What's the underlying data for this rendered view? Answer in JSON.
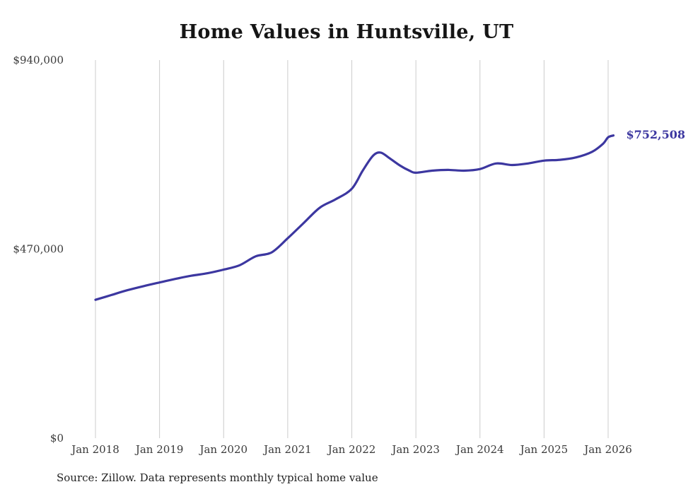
{
  "source_note": "Source: Zillow. Data represents monthly typical home value",
  "chart_data": {
    "type": "line",
    "title": "Home Values in Huntsville, UT",
    "xlabel": "",
    "ylabel": "",
    "ylim": [
      0,
      940000
    ],
    "xlim": [
      2018.0,
      2026.083
    ],
    "grid": "vertical-only",
    "grid_color": "#cccccc",
    "line_color": "#3c37a0",
    "last_value": 752508,
    "last_value_label": "$752,508",
    "y_ticks": [
      {
        "value": 0,
        "label": "$0"
      },
      {
        "value": 470000,
        "label": "$470,000"
      },
      {
        "value": 940000,
        "label": "$940,000"
      }
    ],
    "x_ticks": [
      {
        "x": 2018,
        "label": "Jan 2018"
      },
      {
        "x": 2019,
        "label": "Jan 2019"
      },
      {
        "x": 2020,
        "label": "Jan 2020"
      },
      {
        "x": 2021,
        "label": "Jan 2021"
      },
      {
        "x": 2022,
        "label": "Jan 2022"
      },
      {
        "x": 2023,
        "label": "Jan 2023"
      },
      {
        "x": 2024,
        "label": "Jan 2024"
      },
      {
        "x": 2025,
        "label": "Jan 2025"
      },
      {
        "x": 2026,
        "label": "Jan 2026"
      }
    ],
    "series": [
      {
        "name": "Typical home value",
        "points": [
          [
            2018.0,
            344000
          ],
          [
            2018.25,
            356000
          ],
          [
            2018.5,
            368000
          ],
          [
            2018.75,
            378000
          ],
          [
            2019.0,
            387000
          ],
          [
            2019.25,
            396000
          ],
          [
            2019.5,
            404000
          ],
          [
            2019.75,
            410000
          ],
          [
            2020.0,
            419000
          ],
          [
            2020.25,
            430000
          ],
          [
            2020.5,
            452000
          ],
          [
            2020.75,
            462000
          ],
          [
            2021.0,
            497000
          ],
          [
            2021.25,
            535000
          ],
          [
            2021.5,
            573000
          ],
          [
            2021.75,
            594000
          ],
          [
            2022.0,
            620000
          ],
          [
            2022.17,
            665000
          ],
          [
            2022.33,
            702000
          ],
          [
            2022.45,
            710000
          ],
          [
            2022.58,
            697000
          ],
          [
            2022.75,
            678000
          ],
          [
            2022.9,
            665000
          ],
          [
            2023.0,
            660000
          ],
          [
            2023.25,
            665000
          ],
          [
            2023.5,
            667000
          ],
          [
            2023.75,
            665000
          ],
          [
            2024.0,
            669000
          ],
          [
            2024.25,
            683000
          ],
          [
            2024.5,
            679000
          ],
          [
            2024.75,
            683000
          ],
          [
            2025.0,
            690000
          ],
          [
            2025.25,
            692000
          ],
          [
            2025.5,
            698000
          ],
          [
            2025.75,
            712000
          ],
          [
            2025.92,
            732000
          ],
          [
            2026.0,
            748000
          ],
          [
            2026.083,
            752508
          ]
        ]
      }
    ]
  }
}
